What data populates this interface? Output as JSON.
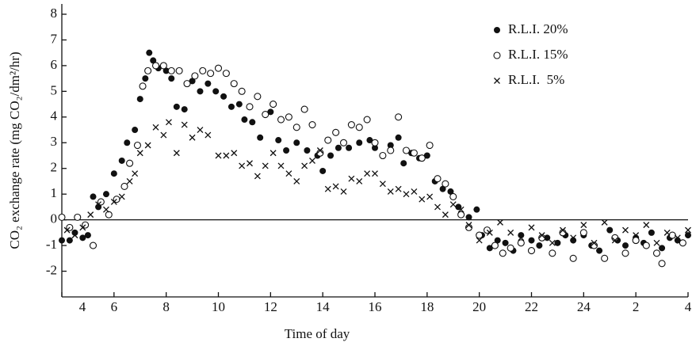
{
  "chart_data": {
    "type": "scatter",
    "y_label": "CO₂ exchange rate (mg CO₂/dm²/hr)",
    "x_label": "Time of day",
    "xlim": [
      4,
      28
    ],
    "ylim": [
      -3,
      8.4
    ],
    "xticks": [
      4,
      6,
      8,
      10,
      12,
      14,
      16,
      18,
      20,
      22,
      24,
      {
        "value": 26,
        "label": "2"
      },
      {
        "value": 28,
        "label": "4"
      }
    ],
    "yticks": [
      -2,
      -1,
      0,
      1,
      2,
      3,
      4,
      5,
      6,
      7,
      8
    ],
    "zero_line": true,
    "legend": "top-right",
    "series": [
      {
        "name": "R.L.I. 20%",
        "color": "#111111",
        "marker": "filled-circle",
        "x": [
          4.0,
          4.3,
          4.5,
          4.8,
          5.0,
          5.2,
          5.4,
          5.7,
          6.0,
          6.3,
          6.5,
          6.8,
          7.0,
          7.2,
          7.35,
          7.5,
          7.7,
          8.0,
          8.2,
          8.4,
          8.7,
          9.0,
          9.3,
          9.6,
          9.9,
          10.2,
          10.5,
          10.8,
          11.0,
          11.3,
          11.6,
          12.0,
          12.3,
          12.6,
          13.0,
          13.4,
          13.8,
          14.0,
          14.3,
          14.6,
          15.0,
          15.4,
          15.8,
          16.0,
          16.3,
          16.6,
          16.9,
          17.1,
          17.4,
          17.7,
          18.0,
          18.3,
          18.6,
          18.9,
          19.2,
          19.6,
          19.9,
          20.1,
          20.4,
          20.7,
          21.0,
          21.3,
          21.6,
          22.0,
          22.3,
          22.6,
          23.0,
          23.3,
          23.6,
          24.0,
          24.3,
          24.6,
          25.0,
          25.3,
          25.6,
          26.0,
          26.3,
          26.6,
          27.0,
          27.3,
          27.6,
          28.0
        ],
        "values": [
          -0.8,
          -0.8,
          -0.5,
          -0.7,
          -0.6,
          0.9,
          0.5,
          1.0,
          1.8,
          2.3,
          3.0,
          3.5,
          4.7,
          5.5,
          6.5,
          6.2,
          5.9,
          5.8,
          5.5,
          4.4,
          4.3,
          5.4,
          5.0,
          5.3,
          5.0,
          4.8,
          4.4,
          4.5,
          3.9,
          3.8,
          3.2,
          4.2,
          3.1,
          2.7,
          3.0,
          2.7,
          2.5,
          1.9,
          2.5,
          2.8,
          2.8,
          3.0,
          3.1,
          2.8,
          2.5,
          2.9,
          3.2,
          2.2,
          2.6,
          2.4,
          2.5,
          1.5,
          1.2,
          1.1,
          0.5,
          0.1,
          0.4,
          -0.6,
          -1.1,
          -0.8,
          -0.9,
          -1.2,
          -0.6,
          -0.8,
          -1.0,
          -0.7,
          -0.9,
          -0.6,
          -0.8,
          -0.6,
          -1.0,
          -1.2,
          -0.4,
          -0.8,
          -1.0,
          -0.7,
          -0.9,
          -0.5,
          -1.1,
          -0.7,
          -0.8,
          -0.6
        ]
      },
      {
        "name": "R.L.I. 15%",
        "color": "#111111",
        "marker": "open-circle",
        "x": [
          4.0,
          4.3,
          4.6,
          4.9,
          5.2,
          5.5,
          5.8,
          6.1,
          6.4,
          6.6,
          6.9,
          7.1,
          7.3,
          7.6,
          7.9,
          8.2,
          8.5,
          8.8,
          9.1,
          9.4,
          9.7,
          10.0,
          10.3,
          10.6,
          10.9,
          11.2,
          11.5,
          11.8,
          12.1,
          12.4,
          12.7,
          13.0,
          13.3,
          13.6,
          13.9,
          14.2,
          14.5,
          14.8,
          15.1,
          15.4,
          15.7,
          16.0,
          16.3,
          16.6,
          16.9,
          17.2,
          17.5,
          17.8,
          18.1,
          18.4,
          18.7,
          19.0,
          19.3,
          19.6,
          20.0,
          20.3,
          20.6,
          20.9,
          21.2,
          21.6,
          22.0,
          22.4,
          22.8,
          23.2,
          23.6,
          24.0,
          24.4,
          24.8,
          25.2,
          25.6,
          26.0,
          26.4,
          26.8,
          27.0,
          27.4,
          27.8
        ],
        "values": [
          0.1,
          -0.3,
          0.1,
          -0.2,
          -1.0,
          0.7,
          0.2,
          0.8,
          1.3,
          2.2,
          2.9,
          5.2,
          5.8,
          6.0,
          6.0,
          5.8,
          5.8,
          5.3,
          5.6,
          5.8,
          5.7,
          5.9,
          5.7,
          5.3,
          5.0,
          4.4,
          4.8,
          4.1,
          4.5,
          3.9,
          4.0,
          3.6,
          4.3,
          3.7,
          2.6,
          3.1,
          3.4,
          3.0,
          3.7,
          3.6,
          3.9,
          3.0,
          2.5,
          2.7,
          4.0,
          2.7,
          2.6,
          2.4,
          2.9,
          1.6,
          1.4,
          0.9,
          0.2,
          -0.3,
          -0.6,
          -0.4,
          -1.0,
          -1.3,
          -1.1,
          -0.9,
          -1.2,
          -0.7,
          -1.3,
          -0.5,
          -1.5,
          -0.5,
          -1.0,
          -1.5,
          -0.7,
          -1.3,
          -0.8,
          -1.0,
          -1.3,
          -1.7,
          -0.6,
          -0.9
        ]
      },
      {
        "name": "R.L.I.  5%",
        "color": "#111111",
        "marker": "cross",
        "x": [
          4.2,
          4.5,
          4.8,
          5.1,
          5.4,
          5.7,
          6.0,
          6.3,
          6.6,
          6.8,
          7.0,
          7.3,
          7.6,
          7.9,
          8.1,
          8.4,
          8.7,
          9.0,
          9.3,
          9.6,
          10.0,
          10.3,
          10.6,
          10.9,
          11.2,
          11.5,
          11.8,
          12.1,
          12.4,
          12.7,
          13.0,
          13.3,
          13.6,
          13.9,
          14.2,
          14.5,
          14.8,
          15.1,
          15.4,
          15.7,
          16.0,
          16.3,
          16.6,
          16.9,
          17.2,
          17.5,
          17.8,
          18.1,
          18.4,
          18.7,
          19.0,
          19.3,
          19.6,
          20.0,
          20.4,
          20.8,
          21.2,
          21.6,
          22.0,
          22.4,
          22.8,
          23.2,
          23.6,
          24.0,
          24.4,
          24.8,
          25.2,
          25.6,
          26.0,
          26.4,
          26.8,
          27.2,
          27.6,
          28.0
        ],
        "values": [
          -0.4,
          -0.6,
          -0.3,
          0.2,
          0.6,
          0.4,
          0.7,
          0.9,
          1.5,
          1.8,
          2.6,
          2.9,
          3.6,
          3.3,
          3.8,
          2.6,
          3.7,
          3.2,
          3.5,
          3.3,
          2.5,
          2.5,
          2.6,
          2.1,
          2.2,
          1.7,
          2.1,
          2.6,
          2.1,
          1.8,
          1.5,
          2.1,
          2.3,
          2.7,
          1.2,
          1.3,
          1.1,
          1.6,
          1.5,
          1.8,
          1.8,
          1.4,
          1.1,
          1.2,
          1.0,
          1.1,
          0.8,
          0.9,
          0.5,
          0.2,
          0.6,
          0.4,
          -0.2,
          -0.8,
          -0.5,
          -0.1,
          -0.5,
          -0.7,
          -0.3,
          -0.6,
          -0.9,
          -0.4,
          -0.7,
          -0.2,
          -0.9,
          -0.1,
          -0.8,
          -0.4,
          -0.6,
          -0.2,
          -0.9,
          -0.5,
          -0.7,
          -0.4
        ]
      }
    ]
  }
}
